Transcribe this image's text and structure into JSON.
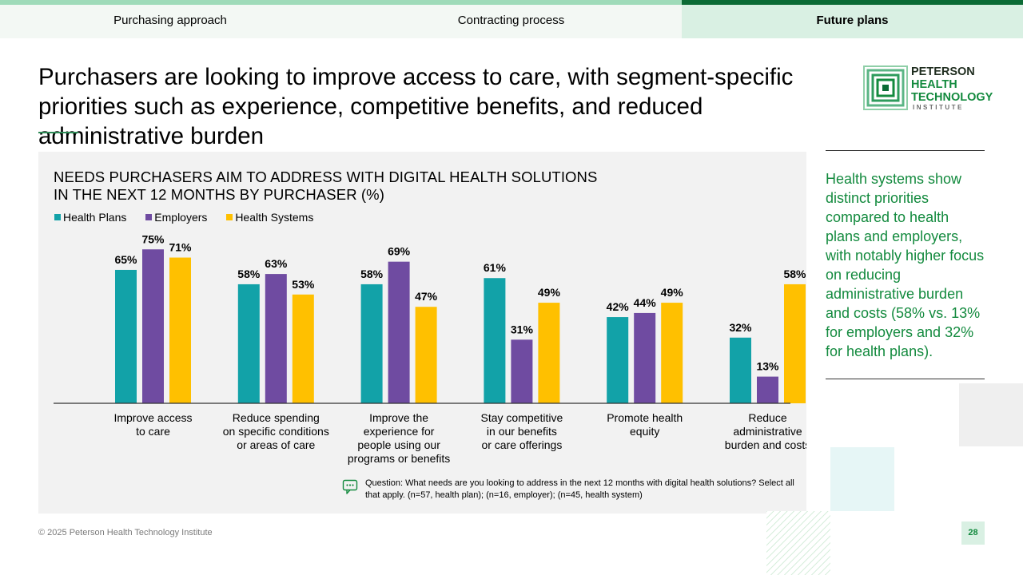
{
  "tabs": [
    {
      "label": "Purchasing approach"
    },
    {
      "label": "Contracting process"
    },
    {
      "label": "Future plans"
    }
  ],
  "colors": {
    "accent_light": "#9fdbb9",
    "accent_dark": "#0b6b35",
    "tab_bg": "#f3f8f4",
    "tab_active_bg": "#d9f0e3",
    "note_green": "#138a3e"
  },
  "headline": "Purchasers are looking to improve access to care, with segment-specific priorities such as experience, competitive benefits, and reduced administrative burden",
  "logo": {
    "line1": "PETERSON",
    "line2": "HEALTH",
    "line3": "TECHNOLOGY",
    "line4": "INSTITUTE"
  },
  "chart_data": {
    "type": "bar",
    "title_line1": "NEEDS PURCHASERS AIM TO ADDRESS WITH DIGITAL HEALTH SOLUTIONS",
    "title_line2": "IN THE NEXT 12 MONTHS BY PURCHASER (%)",
    "ylim": [
      0,
      100
    ],
    "grid": false,
    "legend_position": "top-left",
    "categories": [
      [
        "Improve access",
        "to care"
      ],
      [
        "Reduce spending",
        "on specific conditions",
        "or areas of care"
      ],
      [
        "Improve the",
        "experience for",
        "people using our",
        "programs or benefits"
      ],
      [
        "Stay competitive",
        "in our benefits",
        "or care offerings"
      ],
      [
        "Promote health",
        "equity"
      ],
      [
        "Reduce",
        "administrative",
        "burden and costs"
      ]
    ],
    "series": [
      {
        "name": "Health Plans",
        "color": "#12a2a8",
        "values": [
          65,
          58,
          58,
          61,
          42,
          32
        ]
      },
      {
        "name": "Employers",
        "color": "#6f4ba1",
        "values": [
          75,
          63,
          69,
          31,
          44,
          13
        ]
      },
      {
        "name": "Health Systems",
        "color": "#ffc000",
        "values": [
          71,
          53,
          47,
          49,
          49,
          58
        ]
      }
    ],
    "value_suffix": "%"
  },
  "question": "Question: What needs are you looking to address in the next 12 months with digital health solutions? Select all that apply. (n=57, health plan); (n=16, employer); (n=45, health system)",
  "side_note": "Health systems show distinct priorities compared to health plans and employers, with notably higher focus on reducing administrative burden and costs (58% vs. 13% for employers and 32% for health plans).",
  "footer": "© 2025 Peterson Health Technology Institute",
  "page_number": "28"
}
